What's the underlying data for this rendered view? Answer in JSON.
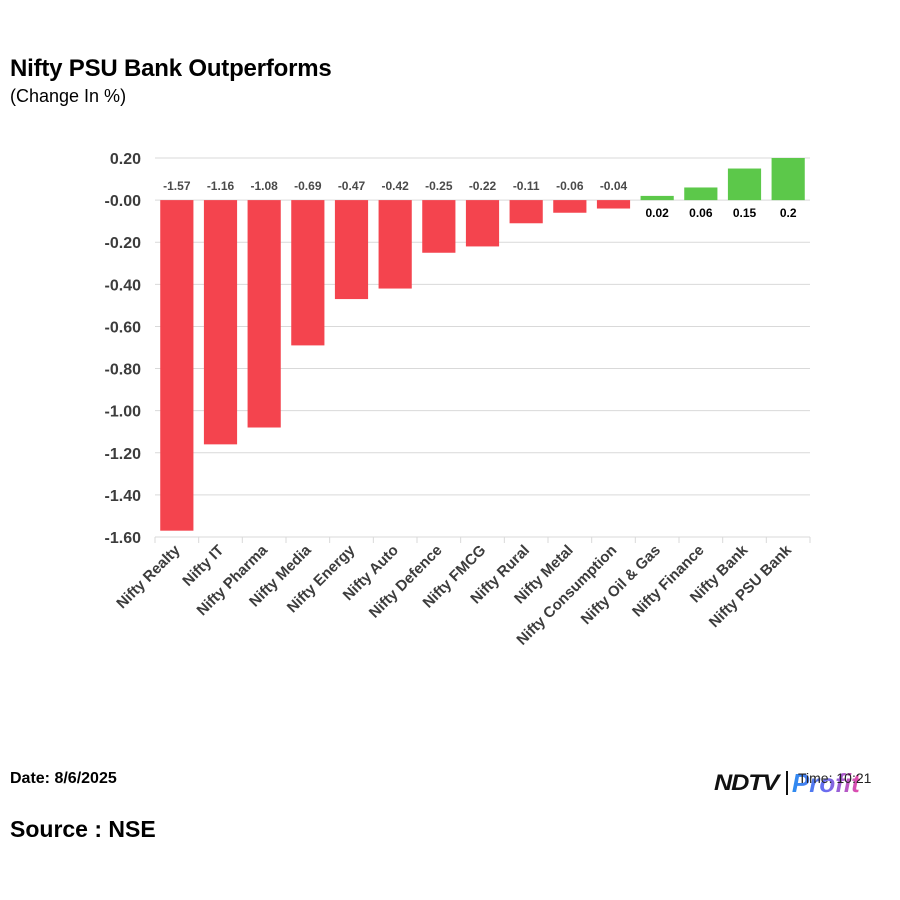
{
  "header": {
    "title": "Nifty PSU Bank Outperforms",
    "subtitle": "(Change In %)"
  },
  "footer": {
    "date": "Date: 8/6/2025",
    "source": "Source : NSE",
    "brand_left": "NDTV",
    "brand_right": "Profit",
    "time": "Time: 10:21"
  },
  "colors": {
    "negative": "#f4444e",
    "positive": "#5cc84a",
    "grid": "#d9d9d9"
  },
  "chart_data": {
    "type": "bar",
    "title": "Nifty PSU Bank Outperforms",
    "subtitle": "(Change In %)",
    "xlabel": "",
    "ylabel": "",
    "ylim": [
      -1.6,
      0.2
    ],
    "yticks": [
      0.2,
      0,
      -0.2,
      -0.4,
      -0.6,
      -0.8,
      -1.0,
      -1.2,
      -1.4,
      -1.6
    ],
    "ytick_labels": [
      "0.20",
      "-0.00",
      "-0.20",
      "-0.40",
      "-0.60",
      "-0.80",
      "-1.00",
      "-1.20",
      "-1.40",
      "-1.60"
    ],
    "grid": true,
    "categories": [
      "Nifty Realty",
      "Nifty IT",
      "Nifty Pharma",
      "Nifty Media",
      "Nifty Energy",
      "Nifty Auto",
      "Nifty Defence",
      "Nifty FMCG",
      "Nifty Rural",
      "Nifty Metal",
      "Nifty Consumption",
      "Nifty Oil & Gas",
      "Nifty Finance",
      "Nifty Bank",
      "Nifty PSU Bank"
    ],
    "values": [
      -1.57,
      -1.16,
      -1.08,
      -0.69,
      -0.47,
      -0.42,
      -0.25,
      -0.22,
      -0.11,
      -0.06,
      -0.04,
      0.02,
      0.06,
      0.15,
      0.2
    ],
    "value_labels": [
      "-1.57",
      "-1.16",
      "-1.08",
      "-0.69",
      "-0.47",
      "-0.42",
      "-0.25",
      "-0.22",
      "-0.11",
      "-0.06",
      "-0.04",
      "0.02",
      "0.06",
      "0.15",
      "0.2"
    ]
  }
}
